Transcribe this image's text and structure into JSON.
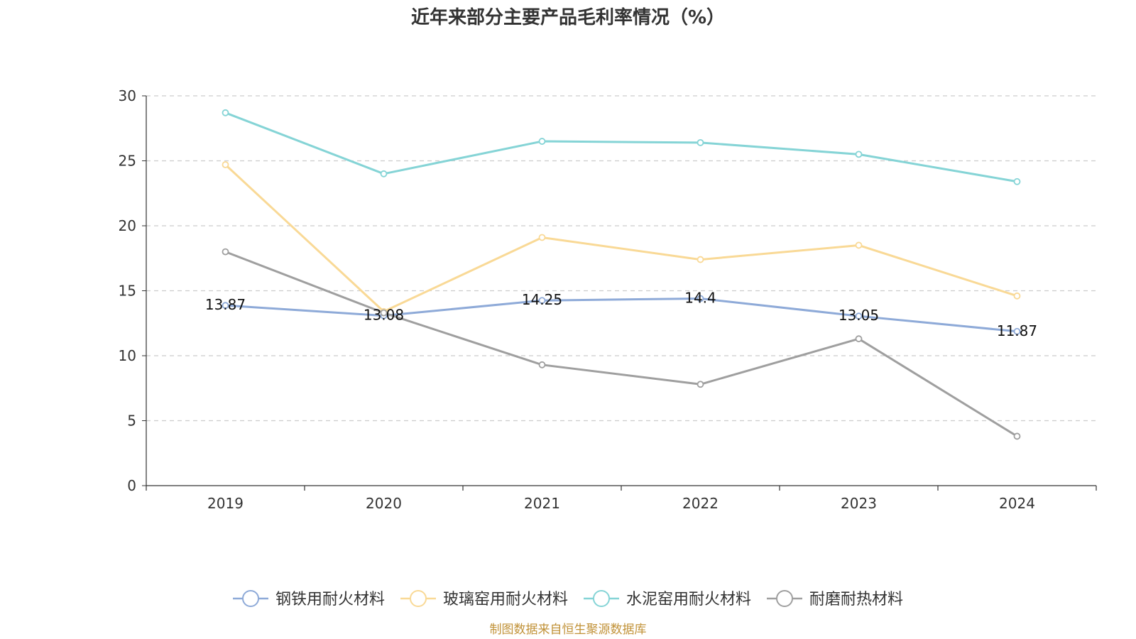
{
  "chart_data": {
    "type": "line",
    "title": "近年来部分主要产品毛利率情况（%）",
    "categories": [
      "2019",
      "2020",
      "2021",
      "2022",
      "2023",
      "2024"
    ],
    "ylim": [
      0,
      30
    ],
    "yticks": [
      0,
      5,
      10,
      15,
      20,
      25,
      30
    ],
    "grid": true,
    "legend_position": "bottom",
    "series": [
      {
        "name": "钢铁用耐火材料",
        "color": "#8eaad8",
        "values": [
          13.87,
          13.08,
          14.25,
          14.4,
          13.05,
          11.87
        ],
        "labels": [
          "13.87",
          "13.08",
          "14.25",
          "14.4",
          "13.05",
          "11.87"
        ]
      },
      {
        "name": "玻璃窑用耐火材料",
        "color": "#f9d996",
        "values": [
          24.7,
          13.4,
          19.1,
          17.4,
          18.5,
          14.6
        ]
      },
      {
        "name": "水泥窑用耐火材料",
        "color": "#85d4d6",
        "values": [
          28.7,
          24.0,
          26.5,
          26.4,
          25.5,
          23.4
        ]
      },
      {
        "name": "耐磨耐热材料",
        "color": "#9f9f9f",
        "values": [
          18.0,
          13.3,
          9.3,
          7.8,
          11.3,
          3.8
        ]
      }
    ]
  },
  "footer": {
    "source": "制图数据来自恒生聚源数据库"
  }
}
